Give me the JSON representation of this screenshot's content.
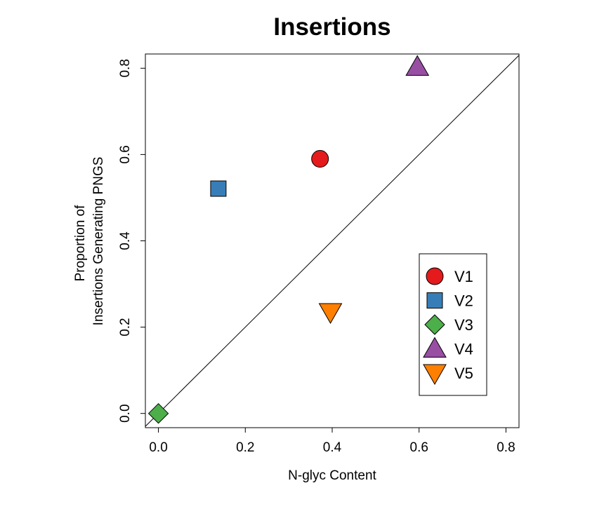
{
  "chart_data": {
    "type": "scatter",
    "title": "Insertions",
    "xlabel": "N-glyc Content",
    "ylabel_lines": [
      "Proportion of",
      "Insertions Generating PNGS"
    ],
    "xlim": [
      -0.03,
      0.83
    ],
    "ylim": [
      -0.033,
      0.833
    ],
    "x_ticks": [
      0.0,
      0.2,
      0.4,
      0.6,
      0.8
    ],
    "x_tick_labels": [
      "0.0",
      "0.2",
      "0.4",
      "0.6",
      "0.8"
    ],
    "y_ticks": [
      0.0,
      0.2,
      0.4,
      0.6,
      0.8
    ],
    "y_tick_labels": [
      "0.0",
      "0.2",
      "0.4",
      "0.6",
      "0.8"
    ],
    "grid": false,
    "reference_line": "y = x",
    "legend_position": "bottom-right",
    "series": [
      {
        "name": "V1",
        "x": 0.372,
        "y": 0.59,
        "marker": "circle",
        "color": "#e41a1c"
      },
      {
        "name": "V2",
        "x": 0.138,
        "y": 0.521,
        "marker": "square",
        "color": "#377eb8"
      },
      {
        "name": "V3",
        "x": 0.0,
        "y": 0.0,
        "marker": "diamond",
        "color": "#4daf4a"
      },
      {
        "name": "V4",
        "x": 0.596,
        "y": 0.803,
        "marker": "triangle-up",
        "color": "#984ea3"
      },
      {
        "name": "V5",
        "x": 0.396,
        "y": 0.235,
        "marker": "triangle-down",
        "color": "#ff7f00"
      }
    ]
  }
}
